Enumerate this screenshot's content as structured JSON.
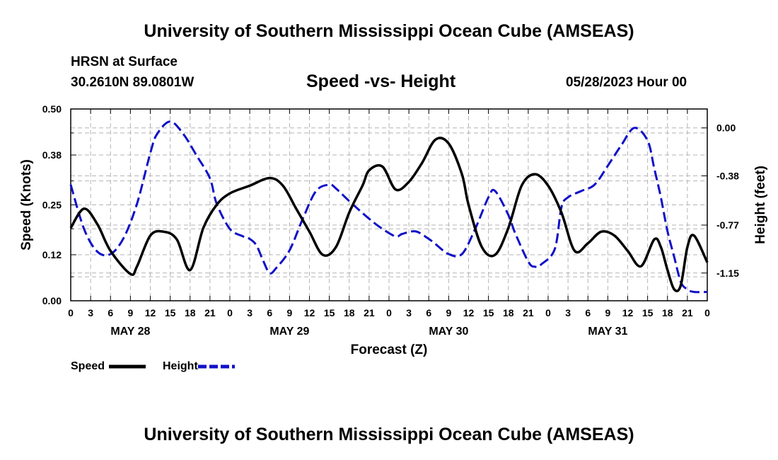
{
  "header": {
    "title": "University of Southern Mississippi Ocean Cube (AMSEAS)",
    "station": "HRSN at Surface",
    "coords": "30.2610N  89.0801W",
    "subtitle": "Speed -vs- Height",
    "datetime": "05/28/2023 Hour 00"
  },
  "footer": {
    "title": "University of Southern Mississippi Ocean Cube (AMSEAS)"
  },
  "colors": {
    "speed": "#000000",
    "height": "#1010c8",
    "grid": "#b4b4b4"
  },
  "chart_data": {
    "type": "line",
    "title": "Speed -vs- Height",
    "xlabel": "Forecast (Z)",
    "ylabel": "Speed (Knots)",
    "y2label": "Height (feet)",
    "xlim": [
      0,
      96
    ],
    "ylim": [
      0,
      0.5
    ],
    "y2lim": [
      -1.37,
      0.15
    ],
    "x_tick_labels": [
      "0",
      "3",
      "6",
      "9",
      "12",
      "15",
      "18",
      "21",
      "0",
      "3",
      "6",
      "9",
      "12",
      "15",
      "18",
      "21",
      "0",
      "3",
      "6",
      "9",
      "12",
      "15",
      "18",
      "21",
      "0",
      "3",
      "6",
      "9",
      "12",
      "15",
      "18",
      "21",
      "0"
    ],
    "date_labels": [
      {
        "label": "MAY 28",
        "hour": 9
      },
      {
        "label": "MAY 29",
        "hour": 33
      },
      {
        "label": "MAY 30",
        "hour": 57
      },
      {
        "label": "MAY 31",
        "hour": 81
      }
    ],
    "y_ticks": [
      0.0,
      0.12,
      0.25,
      0.38,
      0.5
    ],
    "y_tick_labels": [
      "0.00",
      "0.12",
      "0.25",
      "0.38",
      "0.50"
    ],
    "y2_ticks": [
      0.0,
      -0.38,
      -0.77,
      -1.15
    ],
    "y2_tick_labels": [
      "0.00",
      "-0.38",
      "-0.77",
      "-1.15"
    ],
    "legend": [
      {
        "label": "Speed"
      },
      {
        "label": "Height"
      }
    ],
    "series": [
      {
        "name": "Speed",
        "x": [
          0,
          2,
          4,
          6,
          9,
          10,
          12,
          14,
          16,
          18,
          20,
          22,
          24,
          27,
          30,
          32,
          34,
          36,
          38,
          40,
          42,
          44,
          45,
          47,
          49,
          51,
          53,
          55,
          57,
          59,
          60,
          62,
          64,
          66,
          68,
          70,
          72,
          74,
          76,
          78,
          80,
          82,
          84,
          86,
          88,
          89,
          90,
          91,
          92,
          93,
          94,
          96
        ],
        "values": [
          0.19,
          0.24,
          0.2,
          0.13,
          0.07,
          0.09,
          0.17,
          0.18,
          0.16,
          0.08,
          0.19,
          0.25,
          0.28,
          0.3,
          0.32,
          0.3,
          0.24,
          0.18,
          0.12,
          0.14,
          0.23,
          0.3,
          0.34,
          0.35,
          0.29,
          0.31,
          0.36,
          0.42,
          0.41,
          0.33,
          0.25,
          0.14,
          0.12,
          0.19,
          0.3,
          0.33,
          0.3,
          0.23,
          0.13,
          0.15,
          0.18,
          0.17,
          0.13,
          0.09,
          0.16,
          0.14,
          0.08,
          0.03,
          0.04,
          0.14,
          0.17,
          0.1
        ]
      },
      {
        "name": "Height",
        "axis": "y2",
        "x": [
          0,
          2,
          4,
          6,
          8,
          10,
          12,
          13,
          15,
          17,
          19,
          21,
          22,
          24,
          26,
          27,
          28,
          29,
          30,
          31,
          33,
          35,
          37,
          39,
          40,
          42,
          45,
          47,
          49,
          50,
          52,
          54,
          55,
          57,
          59,
          61,
          63,
          64,
          66,
          67,
          69,
          70,
          71,
          73,
          74,
          75,
          77,
          79,
          81,
          83,
          85,
          87,
          88,
          89,
          90,
          91,
          92,
          93,
          94,
          96
        ],
        "values": [
          -0.45,
          -0.8,
          -0.98,
          -1.0,
          -0.87,
          -0.6,
          -0.2,
          -0.05,
          0.05,
          -0.05,
          -0.22,
          -0.4,
          -0.6,
          -0.8,
          -0.86,
          -0.88,
          -0.93,
          -1.05,
          -1.15,
          -1.11,
          -0.97,
          -0.72,
          -0.5,
          -0.45,
          -0.48,
          -0.58,
          -0.72,
          -0.8,
          -0.86,
          -0.84,
          -0.82,
          -0.88,
          -0.92,
          -1.0,
          -1.0,
          -0.8,
          -0.55,
          -0.5,
          -0.69,
          -0.83,
          -1.06,
          -1.1,
          -1.08,
          -0.96,
          -0.63,
          -0.55,
          -0.5,
          -0.45,
          -0.3,
          -0.14,
          0.0,
          -0.1,
          -0.32,
          -0.55,
          -0.82,
          -1.02,
          -1.22,
          -1.28,
          -1.3,
          -1.3
        ]
      }
    ]
  }
}
